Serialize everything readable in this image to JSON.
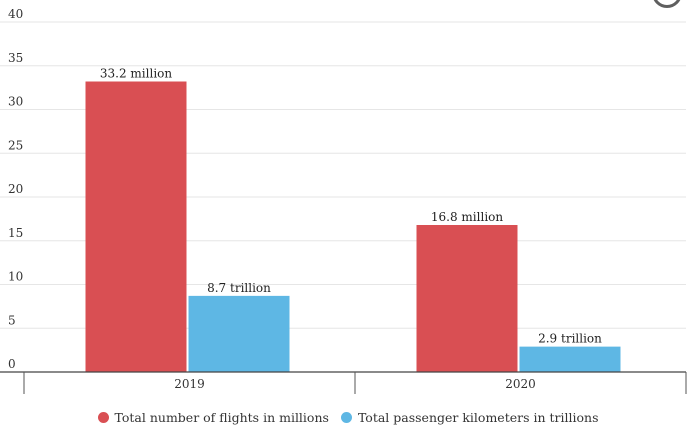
{
  "chart_data": {
    "type": "bar",
    "title": "",
    "xlabel": "",
    "ylabel": "",
    "categories": [
      "2019",
      "2020"
    ],
    "ylim": [
      0,
      40
    ],
    "yticks": [
      0,
      5,
      10,
      15,
      20,
      25,
      30,
      35,
      40
    ],
    "grid": true,
    "legend_position": "bottom-center",
    "series": [
      {
        "name": "Total number of flights in millions",
        "color": "#d94f53",
        "values": [
          33.2,
          16.8
        ],
        "labels": [
          "33.2 million",
          "16.8 million"
        ]
      },
      {
        "name": "Total passenger kilometers in trillions",
        "color": "#5eb7e4",
        "values": [
          8.7,
          2.9
        ],
        "labels": [
          "8.7 trillion",
          "2.9 trillion"
        ]
      }
    ]
  }
}
